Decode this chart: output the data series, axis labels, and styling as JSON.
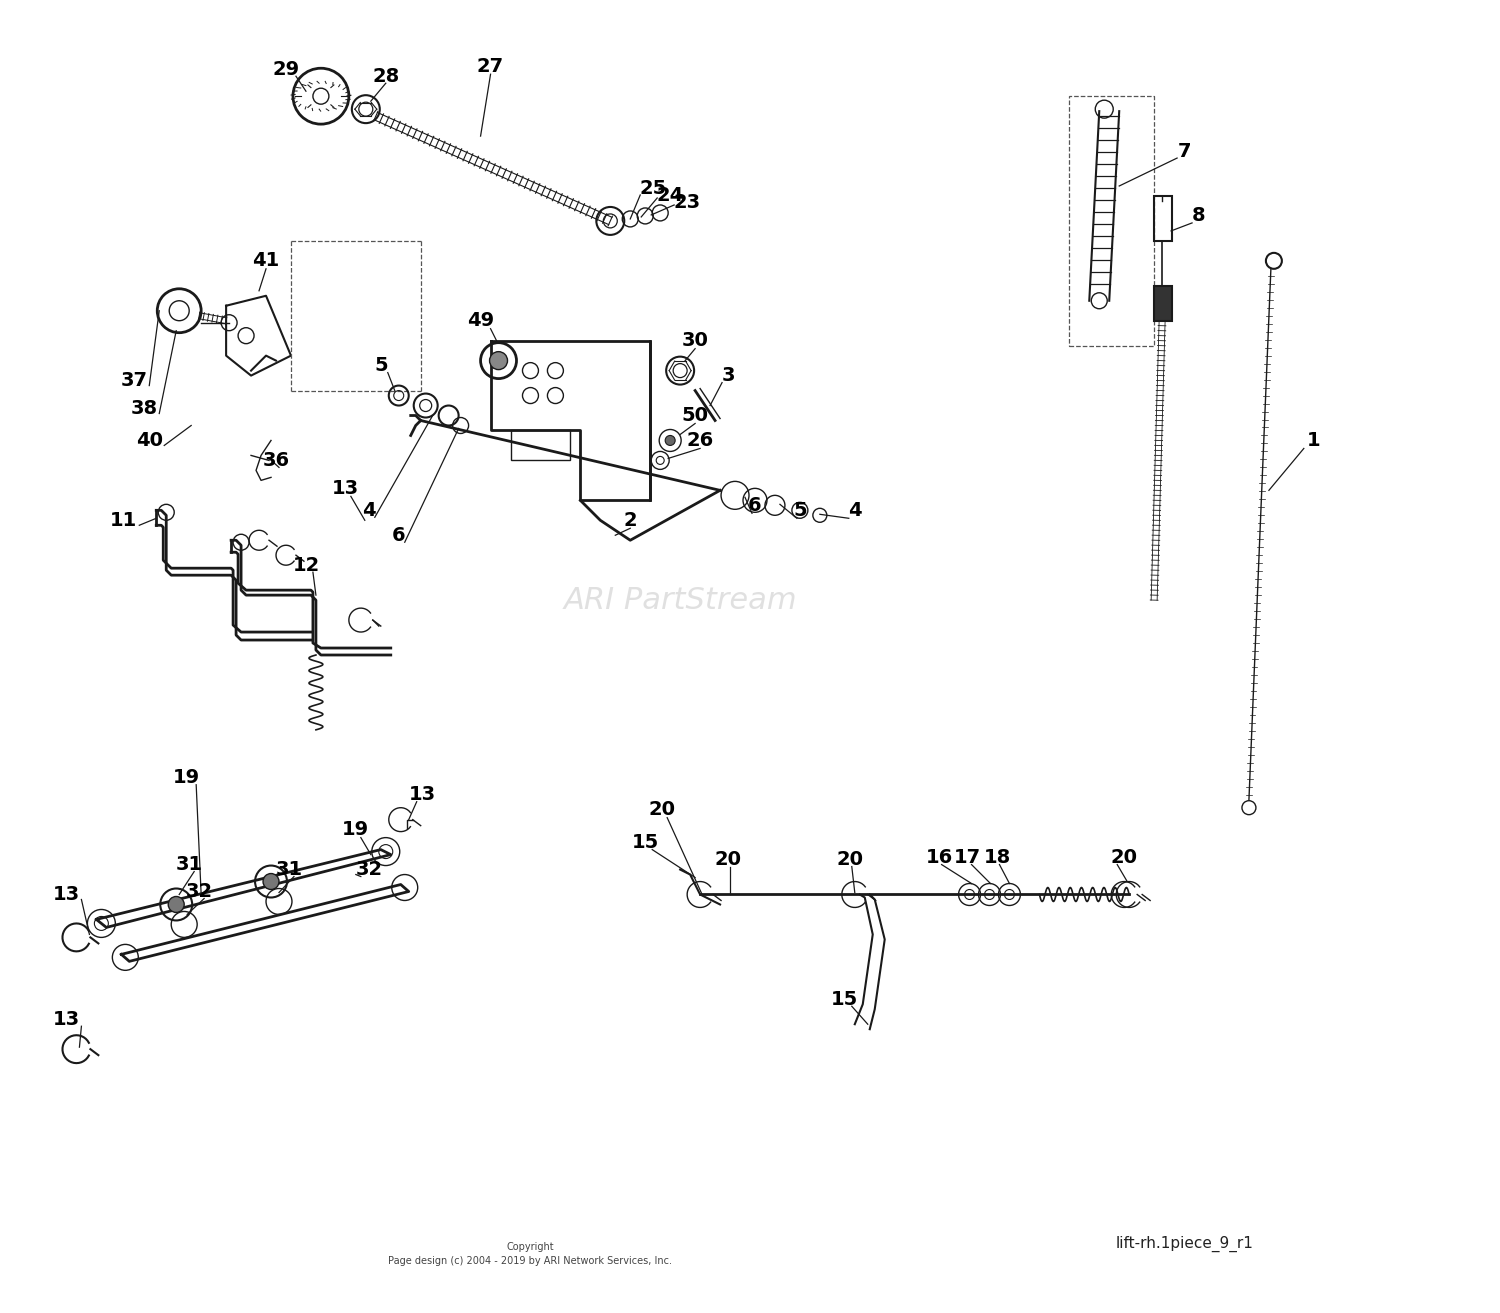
{
  "background_color": "#ffffff",
  "line_color": "#1a1a1a",
  "label_color": "#000000",
  "watermark_text": "ARI PartStream",
  "watermark_color": "#c8c8c8",
  "copyright_text": "Copyright\nPage design (c) 2004 - 2019 by ARI Network Services, Inc.",
  "filename_text": "lift-rh.1piece_9_r1",
  "figsize": [
    15.0,
    13.13
  ],
  "dpi": 100
}
